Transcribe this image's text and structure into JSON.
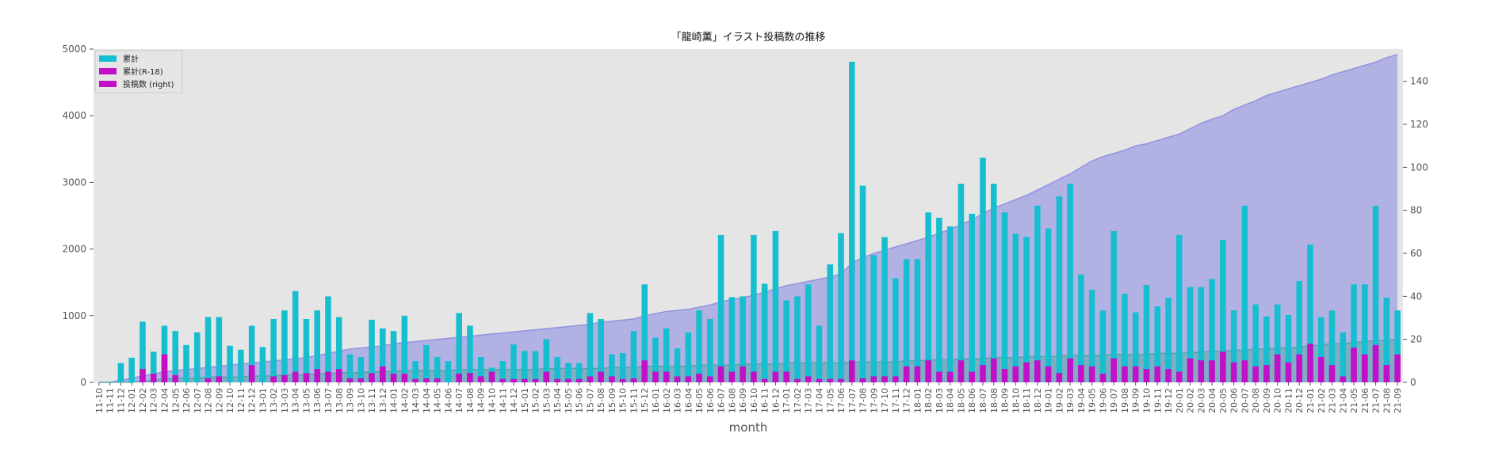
{
  "chart_data": {
    "type": "bar",
    "title": "「龍崎薫」イラスト投稿数の推移",
    "xlabel": "month",
    "ylabel": "",
    "ylim": [
      0,
      5000
    ],
    "y2lim": [
      0,
      155
    ],
    "yticks": [
      0,
      1000,
      2000,
      3000,
      4000,
      5000
    ],
    "y2ticks": [
      0,
      20,
      40,
      60,
      80,
      100,
      120,
      140
    ],
    "grid": false,
    "legend_position": "top-left",
    "categories": [
      "11-10",
      "11-11",
      "11-12",
      "12-01",
      "12-02",
      "12-03",
      "12-04",
      "12-05",
      "12-06",
      "12-07",
      "12-08",
      "12-09",
      "12-10",
      "12-11",
      "12-12",
      "13-01",
      "13-02",
      "13-03",
      "13-04",
      "13-05",
      "13-06",
      "13-07",
      "13-08",
      "13-09",
      "13-10",
      "13-11",
      "13-12",
      "14-01",
      "14-02",
      "14-03",
      "14-04",
      "14-05",
      "14-06",
      "14-07",
      "14-08",
      "14-09",
      "14-10",
      "14-11",
      "14-12",
      "15-01",
      "15-02",
      "15-03",
      "15-04",
      "15-05",
      "15-06",
      "15-07",
      "15-08",
      "15-09",
      "15-10",
      "15-11",
      "15-12",
      "16-01",
      "16-02",
      "16-03",
      "16-04",
      "16-05",
      "16-06",
      "16-07",
      "16-08",
      "16-09",
      "16-10",
      "16-11",
      "16-12",
      "17-01",
      "17-02",
      "17-03",
      "17-04",
      "17-05",
      "17-06",
      "17-07",
      "17-08",
      "17-09",
      "17-10",
      "17-11",
      "17-12",
      "18-01",
      "18-02",
      "18-03",
      "18-04",
      "18-05",
      "18-06",
      "18-07",
      "18-08",
      "18-09",
      "18-10",
      "18-11",
      "18-12",
      "19-01",
      "19-02",
      "19-03",
      "19-04",
      "19-05",
      "19-06",
      "19-07",
      "19-08",
      "19-09",
      "19-10",
      "19-11",
      "19-12",
      "20-01",
      "20-02",
      "20-03",
      "20-04",
      "20-05",
      "20-06",
      "20-07",
      "20-08",
      "20-09",
      "20-10",
      "20-11",
      "20-12",
      "21-01",
      "21-02",
      "21-03",
      "21-04",
      "21-05",
      "21-06",
      "21-07",
      "21-08",
      "21-09"
    ],
    "series": [
      {
        "name": "累計",
        "kind": "bar",
        "axis": "left",
        "color": "#17BECF",
        "values": [
          0,
          0,
          290,
          370,
          910,
          460,
          850,
          770,
          560,
          750,
          980,
          980,
          550,
          490,
          850,
          530,
          950,
          1080,
          1370,
          950,
          1080,
          1290,
          980,
          420,
          380,
          940,
          810,
          770,
          1000,
          320,
          560,
          380,
          320,
          1040,
          850,
          380,
          220,
          320,
          570,
          470,
          470,
          650,
          380,
          290,
          290,
          1040,
          950,
          420,
          440,
          770,
          1470,
          670,
          810,
          510,
          750,
          1080,
          950,
          2210,
          1280,
          1290,
          2210,
          1480,
          2270,
          1230,
          1290,
          1470,
          850,
          1770,
          2240,
          4810,
          2950,
          1910,
          2180,
          1560,
          1850,
          1850,
          2550,
          2470,
          2340,
          2980,
          2530,
          3370,
          2980,
          2550,
          2230,
          2180,
          2650,
          2310,
          2790,
          2980,
          1620,
          1390,
          1080,
          2270,
          1330,
          1050,
          1460,
          1140,
          1270,
          2210,
          1430,
          1430,
          1550,
          2140,
          1080,
          2650,
          1170,
          990,
          1170,
          1010,
          1520,
          2070,
          980,
          1080,
          750,
          1470,
          1470,
          2650,
          1270,
          1080
        ]
      },
      {
        "name": "累計(R-18)",
        "kind": "bar",
        "axis": "left",
        "color": "#C20FC8",
        "values": [
          0,
          0,
          0,
          0,
          200,
          130,
          420,
          110,
          0,
          0,
          60,
          90,
          0,
          0,
          260,
          0,
          90,
          110,
          160,
          140,
          200,
          160,
          200,
          60,
          60,
          140,
          240,
          130,
          130,
          50,
          60,
          60,
          0,
          130,
          140,
          90,
          160,
          50,
          50,
          50,
          50,
          160,
          50,
          50,
          50,
          90,
          160,
          90,
          50,
          60,
          330,
          160,
          160,
          90,
          90,
          130,
          90,
          240,
          160,
          240,
          160,
          50,
          160,
          160,
          50,
          90,
          50,
          50,
          50,
          330,
          60,
          90,
          90,
          90,
          240,
          240,
          330,
          160,
          160,
          330,
          160,
          260,
          360,
          200,
          240,
          300,
          330,
          240,
          140,
          360,
          260,
          240,
          130,
          360,
          240,
          240,
          200,
          240,
          200,
          160,
          360,
          330,
          330,
          460,
          300,
          330,
          240,
          260,
          420,
          300,
          420,
          580,
          380,
          260,
          90,
          520,
          420,
          560,
          260,
          420
        ]
      },
      {
        "name": "投稿数 (right)",
        "kind": "area",
        "axis": "right",
        "color": "#7070E0",
        "values": [
          0,
          0,
          1,
          2,
          3,
          4,
          5,
          5.5,
          6,
          6.5,
          7,
          7.5,
          8,
          8.5,
          9,
          9.5,
          10,
          10.5,
          11,
          11.5,
          12.5,
          13.5,
          14.5,
          15.5,
          16,
          16.5,
          17,
          18,
          18.5,
          19,
          19.5,
          20,
          20.5,
          21,
          21.5,
          22,
          22.5,
          23,
          23.5,
          24,
          24.5,
          25,
          25.5,
          26,
          26.5,
          27,
          28,
          28.5,
          29,
          29.5,
          31,
          32,
          33,
          33.5,
          34,
          35,
          36,
          37.5,
          38.5,
          39.5,
          40.5,
          42,
          43.5,
          45,
          46,
          47,
          48,
          49,
          50.5,
          55.5,
          58,
          60,
          61.5,
          63,
          64.5,
          66,
          67.5,
          69.5,
          71,
          73.5,
          75.5,
          78.5,
          81,
          83,
          85,
          87,
          89.5,
          92,
          94.5,
          97,
          100,
          103,
          105,
          106.5,
          108,
          110,
          111,
          112.5,
          114,
          115.5,
          118,
          120.5,
          122.5,
          124,
          127,
          129,
          131,
          133.5,
          135,
          136.5,
          138,
          139.5,
          141,
          143,
          144.5,
          146,
          147.5,
          149,
          151,
          152.5
        ]
      },
      {
        "name": "",
        "kind": "area",
        "axis": "right",
        "color": "#2CA089",
        "values": [
          0,
          0,
          0,
          0,
          0.5,
          1,
          1.5,
          2,
          2,
          2,
          2.5,
          2.5,
          2.5,
          2.5,
          3,
          3,
          3,
          3.5,
          3.5,
          3.5,
          4,
          4,
          4.5,
          4.5,
          4.5,
          5,
          5,
          5,
          5.5,
          5.5,
          5.5,
          5.5,
          5.5,
          6,
          6,
          6,
          6,
          6,
          6,
          6,
          6,
          6.5,
          6.5,
          6.5,
          6.5,
          6.5,
          6.5,
          7,
          7,
          7,
          7.5,
          7.5,
          7.5,
          7.5,
          7.5,
          8,
          8,
          8,
          8,
          8.5,
          8.5,
          8.5,
          8.5,
          9,
          9,
          9,
          9,
          9,
          9,
          9.5,
          9.5,
          9.5,
          9.5,
          9.5,
          10,
          10,
          10.5,
          10.5,
          10.5,
          11,
          11,
          11,
          11.5,
          11.5,
          11.5,
          12,
          12,
          12,
          12,
          12.5,
          12.5,
          12.5,
          12.5,
          13,
          13,
          13,
          13,
          13.5,
          13.5,
          13.5,
          14,
          14,
          14.5,
          14.5,
          15,
          15,
          15.5,
          15.5,
          16,
          16,
          16.5,
          17,
          17.5,
          18,
          18,
          18.5,
          19,
          19.5,
          19.5,
          20
        ]
      }
    ]
  }
}
